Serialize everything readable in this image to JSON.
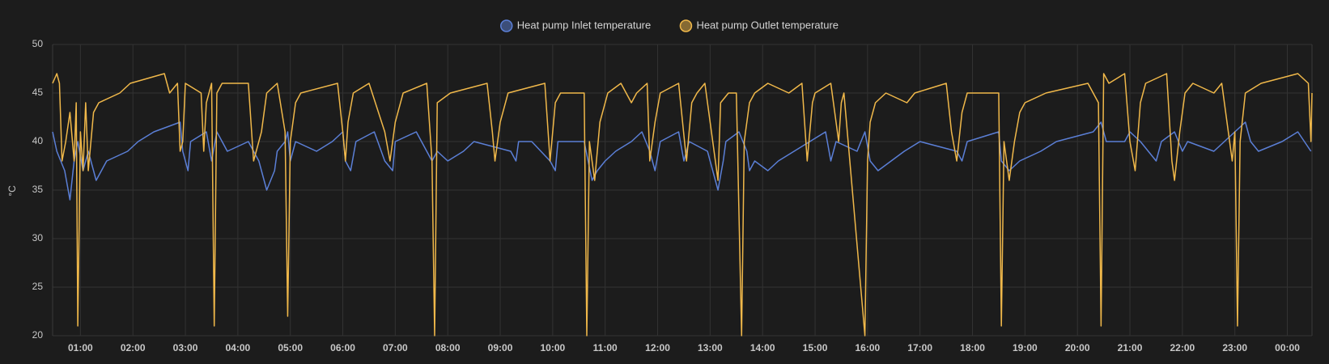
{
  "chart_data": {
    "type": "line",
    "y_label": "°C",
    "xlim": [
      0.47,
      24.47
    ],
    "xticks": [
      {
        "value": 1,
        "label": "01:00"
      },
      {
        "value": 2,
        "label": "02:00"
      },
      {
        "value": 3,
        "label": "03:00"
      },
      {
        "value": 4,
        "label": "04:00"
      },
      {
        "value": 5,
        "label": "05:00"
      },
      {
        "value": 6,
        "label": "06:00"
      },
      {
        "value": 7,
        "label": "07:00"
      },
      {
        "value": 8,
        "label": "08:00"
      },
      {
        "value": 9,
        "label": "09:00"
      },
      {
        "value": 10,
        "label": "10:00"
      },
      {
        "value": 11,
        "label": "11:00"
      },
      {
        "value": 12,
        "label": "12:00"
      },
      {
        "value": 13,
        "label": "13:00"
      },
      {
        "value": 14,
        "label": "14:00"
      },
      {
        "value": 15,
        "label": "15:00"
      },
      {
        "value": 16,
        "label": "16:00"
      },
      {
        "value": 17,
        "label": "17:00"
      },
      {
        "value": 18,
        "label": "18:00"
      },
      {
        "value": 19,
        "label": "19:00"
      },
      {
        "value": 20,
        "label": "20:00"
      },
      {
        "value": 21,
        "label": "21:00"
      },
      {
        "value": 22,
        "label": "22:00"
      },
      {
        "value": 23,
        "label": "23:00"
      },
      {
        "value": 24,
        "label": "00:00"
      }
    ],
    "ylim": [
      20,
      50
    ],
    "yticks": [
      20,
      25,
      30,
      35,
      40,
      45,
      50
    ],
    "grid": true,
    "legend": "top",
    "series": [
      {
        "name": "Heat pump Inlet temperature",
        "color": "#5b7fd6",
        "x": [
          0.47,
          0.55,
          0.7,
          0.8,
          0.88,
          0.95,
          1.05,
          1.15,
          1.3,
          1.4,
          1.5,
          1.9,
          2.1,
          2.4,
          2.9,
          2.95,
          3.05,
          3.1,
          3.4,
          3.5,
          3.6,
          3.7,
          3.8,
          4.2,
          4.4,
          4.55,
          4.7,
          4.75,
          4.9,
          4.95,
          5.0,
          5.1,
          5.5,
          5.8,
          6.0,
          6.05,
          6.15,
          6.25,
          6.6,
          6.8,
          6.95,
          7.0,
          7.4,
          7.6,
          7.7,
          7.8,
          8.0,
          8.3,
          8.5,
          9.2,
          9.3,
          9.35,
          9.6,
          9.95,
          10.05,
          10.1,
          10.6,
          10.75,
          10.85,
          11.0,
          11.2,
          11.5,
          11.7,
          11.85,
          11.95,
          12.05,
          12.4,
          12.5,
          12.6,
          12.95,
          13.0,
          13.1,
          13.15,
          13.25,
          13.3,
          13.55,
          13.7,
          13.75,
          13.85,
          14.1,
          14.3,
          14.6,
          14.9,
          15.2,
          15.3,
          15.4,
          15.8,
          15.95,
          16.05,
          16.2,
          16.45,
          16.7,
          17.0,
          17.7,
          17.8,
          17.9,
          18.5,
          18.55,
          18.7,
          18.9,
          19.3,
          19.6,
          20.3,
          20.45,
          20.55,
          20.9,
          21.0,
          21.2,
          21.5,
          21.6,
          21.85,
          22.0,
          22.1,
          22.6,
          22.8,
          23.0,
          23.2,
          23.3,
          23.45,
          23.9,
          24.2,
          24.45
        ],
        "values": [
          41,
          39,
          37,
          34,
          38,
          40,
          37,
          39,
          36,
          37,
          38,
          39,
          40,
          41,
          42,
          39,
          37,
          40,
          41,
          38,
          41,
          40,
          39,
          40,
          38,
          35,
          37,
          39,
          40,
          41,
          38,
          40,
          39,
          40,
          41,
          38,
          37,
          40,
          41,
          38,
          37,
          40,
          41,
          39,
          38,
          39,
          38,
          39,
          40,
          39,
          38,
          40,
          40,
          38,
          37,
          40,
          40,
          36,
          37,
          38,
          39,
          40,
          41,
          39,
          37,
          40,
          41,
          38,
          40,
          39,
          38,
          36,
          35,
          38,
          40,
          41,
          39,
          37,
          38,
          37,
          38,
          39,
          40,
          41,
          38,
          40,
          39,
          41,
          38,
          37,
          38,
          39,
          40,
          39,
          38,
          40,
          41,
          38,
          37,
          38,
          39,
          40,
          41,
          42,
          40,
          40,
          41,
          40,
          38,
          40,
          41,
          39,
          40,
          39,
          40,
          41,
          42,
          40,
          39,
          40,
          41,
          39
        ]
      },
      {
        "name": "Heat pump Outlet temperature",
        "color": "#f0b84a",
        "x": [
          0.47,
          0.55,
          0.6,
          0.65,
          0.72,
          0.8,
          0.88,
          0.92,
          0.95,
          1.0,
          1.05,
          1.1,
          1.15,
          1.25,
          1.35,
          1.75,
          1.95,
          2.6,
          2.7,
          2.85,
          2.9,
          2.95,
          3.0,
          3.3,
          3.35,
          3.4,
          3.5,
          3.55,
          3.6,
          3.7,
          4.2,
          4.3,
          4.45,
          4.55,
          4.75,
          4.9,
          4.95,
          5.0,
          5.1,
          5.2,
          5.9,
          6.0,
          6.05,
          6.1,
          6.2,
          6.5,
          6.8,
          6.9,
          7.0,
          7.15,
          7.6,
          7.7,
          7.75,
          7.8,
          8.05,
          8.75,
          8.85,
          8.9,
          9.0,
          9.15,
          9.85,
          9.95,
          10.05,
          10.15,
          10.6,
          10.65,
          10.7,
          10.8,
          10.9,
          11.05,
          11.3,
          11.5,
          11.6,
          11.8,
          11.85,
          11.95,
          12.05,
          12.4,
          12.55,
          12.65,
          12.75,
          12.9,
          13.05,
          13.15,
          13.2,
          13.35,
          13.5,
          13.6,
          13.65,
          13.75,
          13.85,
          14.1,
          14.5,
          14.75,
          14.85,
          14.95,
          15.0,
          15.3,
          15.45,
          15.5,
          15.55,
          15.95,
          16.0,
          16.05,
          16.15,
          16.35,
          16.75,
          16.9,
          17.5,
          17.6,
          17.7,
          17.8,
          17.9,
          18.5,
          18.55,
          18.6,
          18.7,
          18.8,
          18.9,
          19.0,
          19.4,
          20.2,
          20.4,
          20.45,
          20.5,
          20.6,
          20.9,
          21.0,
          21.1,
          21.2,
          21.3,
          21.7,
          21.8,
          21.85,
          21.95,
          22.05,
          22.2,
          22.6,
          22.75,
          22.95,
          23.0,
          23.05,
          23.1,
          23.2,
          23.5,
          24.2,
          24.4,
          24.45,
          24.47
        ],
        "values": [
          46,
          47,
          46,
          38,
          40,
          43,
          38,
          44,
          21,
          41,
          37,
          44,
          37,
          43,
          44,
          45,
          46,
          47,
          45,
          46,
          39,
          40,
          46,
          45,
          39,
          44,
          46,
          21,
          45,
          46,
          46,
          38,
          41,
          45,
          46,
          41,
          22,
          40,
          44,
          45,
          46,
          41,
          38,
          42,
          45,
          46,
          41,
          38,
          42,
          45,
          46,
          38,
          20,
          44,
          45,
          46,
          41,
          38,
          42,
          45,
          46,
          38,
          44,
          45,
          45,
          20,
          40,
          36,
          42,
          45,
          46,
          44,
          45,
          46,
          38,
          42,
          45,
          46,
          38,
          44,
          45,
          46,
          40,
          36,
          44,
          45,
          45,
          20,
          40,
          44,
          45,
          46,
          45,
          46,
          38,
          44,
          45,
          46,
          40,
          44,
          45,
          20,
          38,
          42,
          44,
          45,
          44,
          45,
          46,
          41,
          38,
          43,
          45,
          45,
          21,
          40,
          36,
          40,
          43,
          44,
          45,
          46,
          44,
          21,
          47,
          46,
          47,
          40,
          37,
          44,
          46,
          47,
          38,
          36,
          41,
          45,
          46,
          45,
          46,
          38,
          41,
          21,
          40,
          45,
          46,
          47,
          46,
          40,
          45
        ]
      }
    ]
  }
}
